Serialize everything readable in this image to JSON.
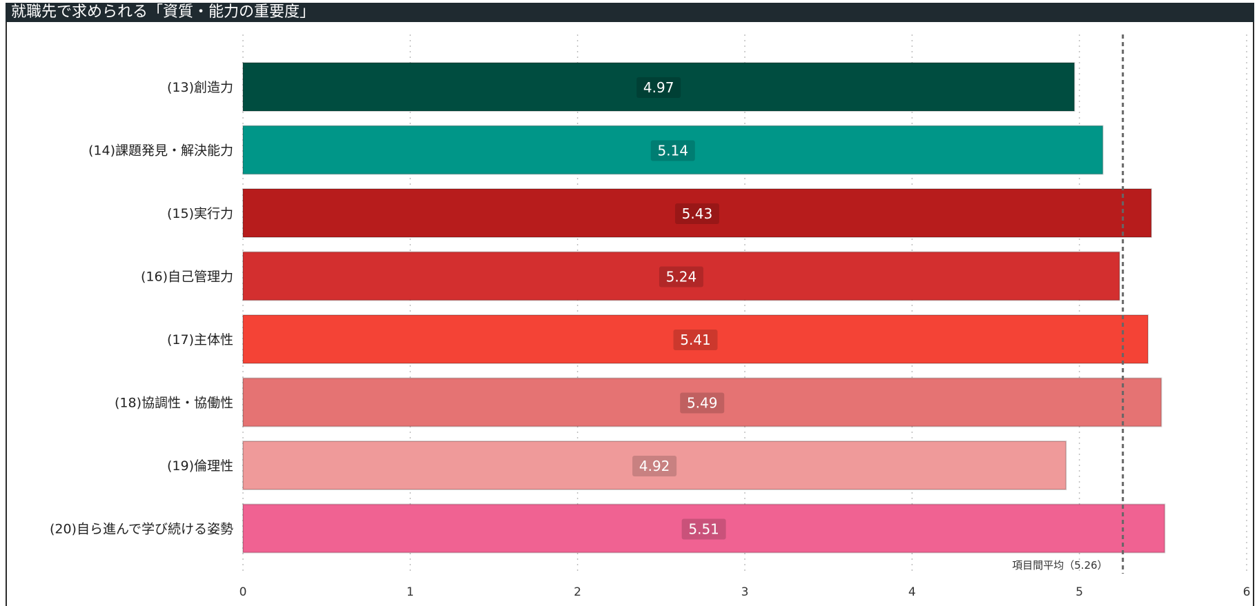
{
  "title": "就職先で求められる「資質・能力の重要度」",
  "chart_data": {
    "type": "bar",
    "orientation": "horizontal",
    "title": "就職先で求められる「資質・能力の重要度」",
    "categories": [
      "(13)創造力",
      "(14)課題発見・解決能力",
      "(15)実行力",
      "(16)自己管理力",
      "(17)主体性",
      "(18)協調性・協働性",
      "(19)倫理性",
      "(20)自ら進んで学び続ける姿勢"
    ],
    "values": [
      4.97,
      5.14,
      5.43,
      5.24,
      5.41,
      5.49,
      4.92,
      5.51
    ],
    "value_labels": [
      "4.97",
      "5.14",
      "5.43",
      "5.24",
      "5.41",
      "5.49",
      "4.92",
      "5.51"
    ],
    "colors": [
      "#004d40",
      "#009688",
      "#b71c1c",
      "#d32f2f",
      "#f44336",
      "#e57373",
      "#ef9a9a",
      "#f06292"
    ],
    "xlim": [
      0,
      6
    ],
    "xticks": [
      "0",
      "1",
      "2",
      "3",
      "4",
      "5",
      "6"
    ],
    "grid": true,
    "reference_line": {
      "value": 5.26,
      "label": "項目間平均（5.26）"
    }
  }
}
